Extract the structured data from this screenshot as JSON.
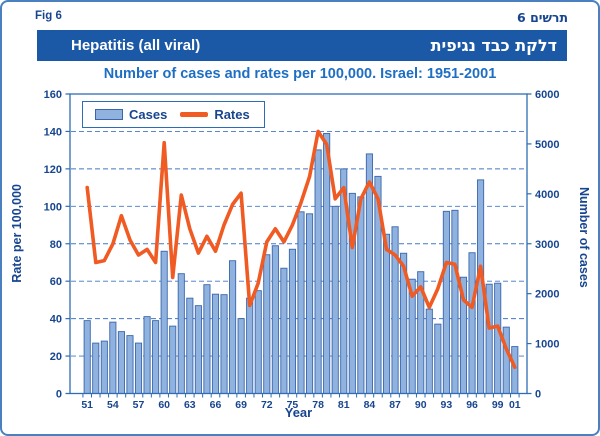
{
  "figure": {
    "fig_label_en": "Fig 6",
    "fig_label_he": "תרשים 6"
  },
  "banner": {
    "title_en": "Hepatitis (all viral)",
    "title_he": "דלקת כבד נגיפית"
  },
  "subtitle": "Number of cases and rates per 100,000. Israel: 1951-2001",
  "legend": {
    "cases_label": "Cases",
    "rates_label": "Rates"
  },
  "colors": {
    "banner_bg": "#1b58a5",
    "bar_fill": "#8fb3de",
    "bar_stroke": "#3a66ad",
    "line": "#f05a23",
    "gridline": "#3b6ec5",
    "frame": "#2e6db4",
    "tick_text": "#17458f"
  },
  "chart_data": {
    "type": "bar+line",
    "title": "Hepatitis (all viral)",
    "subtitle": "Number of cases and rates per 100,000. Israel: 1951-2001",
    "grid": "horizontal-dashed",
    "legend_position": "top-left-inside",
    "x": [
      1951,
      1952,
      1953,
      1954,
      1955,
      1956,
      1957,
      1958,
      1959,
      1960,
      1961,
      1962,
      1963,
      1964,
      1965,
      1966,
      1967,
      1968,
      1969,
      1970,
      1971,
      1972,
      1973,
      1974,
      1975,
      1976,
      1977,
      1978,
      1979,
      1980,
      1981,
      1982,
      1983,
      1984,
      1985,
      1986,
      1987,
      1988,
      1989,
      1990,
      1991,
      1992,
      1993,
      1994,
      1995,
      1996,
      1997,
      1998,
      1999,
      2000,
      2001
    ],
    "series": [
      {
        "name": "Cases",
        "type": "bar",
        "axis": "right",
        "values": [
          1460,
          1010,
          1050,
          1430,
          1240,
          1160,
          1010,
          1540,
          1460,
          2850,
          1350,
          2400,
          1910,
          1760,
          2180,
          1990,
          1980,
          2660,
          1500,
          1910,
          2060,
          2780,
          2960,
          2510,
          2890,
          3640,
          3600,
          4880,
          5210,
          3750,
          4500,
          4010,
          3940,
          4800,
          4350,
          3190,
          3340,
          2810,
          2290,
          2440,
          1690,
          1390,
          3650,
          3670,
          2330,
          2820,
          4280,
          2190,
          2210,
          1330,
          940
        ]
      },
      {
        "name": "Rates",
        "type": "line",
        "axis": "left",
        "values": [
          110,
          70,
          71,
          80,
          95,
          82,
          74,
          77,
          70,
          134,
          62,
          106,
          88,
          75,
          84,
          76,
          90,
          101,
          107,
          47,
          59,
          81,
          88,
          81,
          90,
          102,
          116,
          140,
          133,
          104,
          110,
          78,
          104,
          113,
          104,
          77,
          74,
          68,
          52,
          57,
          46,
          56,
          70,
          69,
          50,
          46,
          68,
          35,
          36,
          24,
          14
        ]
      }
    ],
    "left_axis": {
      "label": "Rate per 100,000",
      "min": 0,
      "max": 160,
      "tick_step": 20,
      "tick_labels": [
        "0",
        "20",
        "40",
        "60",
        "80",
        "100",
        "120",
        "140",
        "160"
      ]
    },
    "right_axis": {
      "label": "Number of cases",
      "min": 0,
      "max": 6000,
      "tick_step": 1000,
      "tick_labels": [
        "0",
        "1000",
        "2000",
        "3000",
        "4000",
        "5000",
        "6000"
      ]
    },
    "x_axis": {
      "label": "Year",
      "ticks": [
        {
          "label": "51",
          "year": 1951
        },
        {
          "label": "54",
          "year": 1954
        },
        {
          "label": "57",
          "year": 1957
        },
        {
          "label": "60",
          "year": 1960
        },
        {
          "label": "63",
          "year": 1963
        },
        {
          "label": "66",
          "year": 1966
        },
        {
          "label": "69",
          "year": 1969
        },
        {
          "label": "72",
          "year": 1972
        },
        {
          "label": "75",
          "year": 1975
        },
        {
          "label": "78",
          "year": 1978
        },
        {
          "label": "81",
          "year": 1981
        },
        {
          "label": "84",
          "year": 1984
        },
        {
          "label": "87",
          "year": 1987
        },
        {
          "label": "90",
          "year": 1990
        },
        {
          "label": "93",
          "year": 1993
        },
        {
          "label": "96",
          "year": 1996
        },
        {
          "label": "99",
          "year": 1999
        },
        {
          "label": "01",
          "year": 2001
        }
      ]
    }
  }
}
